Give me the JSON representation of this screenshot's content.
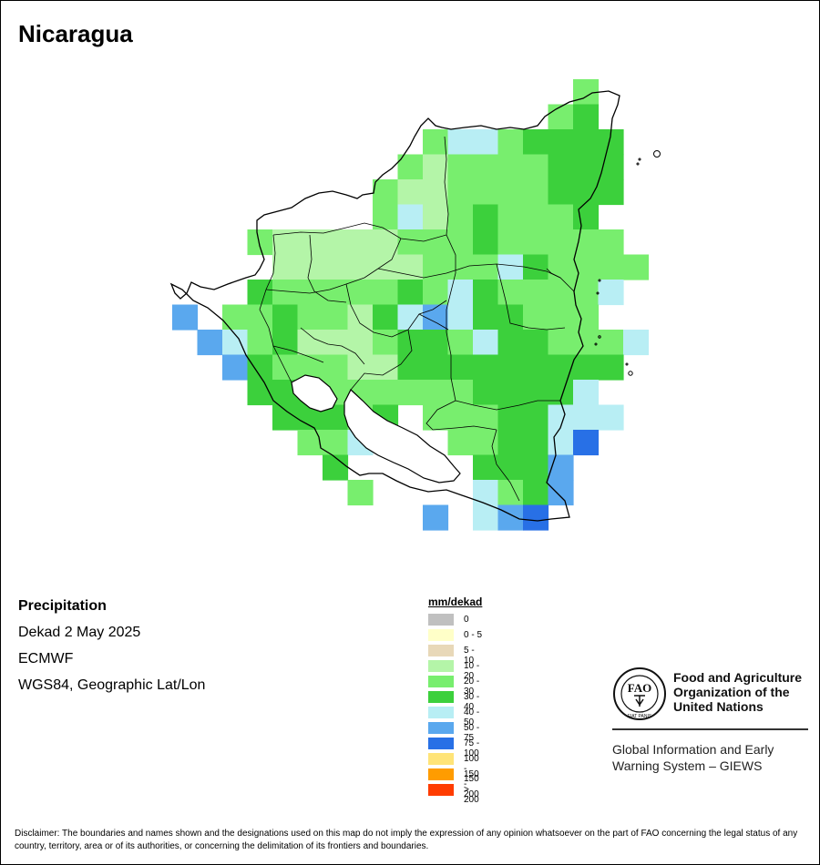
{
  "title": "Nicaragua",
  "info": {
    "variable": "Precipitation",
    "period": "Dekad 2 May 2025",
    "model": "ECMWF",
    "projection": "WGS84, Geographic Lat/Lon"
  },
  "legend": {
    "title": "mm/dekad",
    "items": [
      {
        "label": "0",
        "color": "#c0c0c0"
      },
      {
        "label": "0 - 5",
        "color": "#ffffc8"
      },
      {
        "label": "5 - 10",
        "color": "#e8d8b8"
      },
      {
        "label": "10 - 20",
        "color": "#b4f5a8"
      },
      {
        "label": "20 - 30",
        "color": "#78ee6e"
      },
      {
        "label": "30 - 40",
        "color": "#3cd03c"
      },
      {
        "label": "40 - 50",
        "color": "#b8eef4"
      },
      {
        "label": "50 - 75",
        "color": "#5aa8ee"
      },
      {
        "label": "75 - 100",
        "color": "#2870e6"
      },
      {
        "label": "100 - 150",
        "color": "#ffe478"
      },
      {
        "label": "150 - 200",
        "color": "#ff9c00"
      },
      {
        "label": "> 200",
        "color": "#ff3c00"
      }
    ]
  },
  "fao": {
    "name_line1": "Food and Agriculture",
    "name_line2": "Organization of the",
    "name_line3": "United Nations",
    "logo_text": "FAO",
    "logo_motto": "FIAT PANIS",
    "giews_line1": "Global Information and Early",
    "giews_line2": "Warning System – GIEWS"
  },
  "disclaimer": "Disclaimer: The boundaries and names shown and the designations used on this map do not imply the expression of any opinion whatsoever on the part of FAO concerning the legal status of any country, territory, area or of its authorities, or concerning the delimitation of its frontiers and boundaries."
}
